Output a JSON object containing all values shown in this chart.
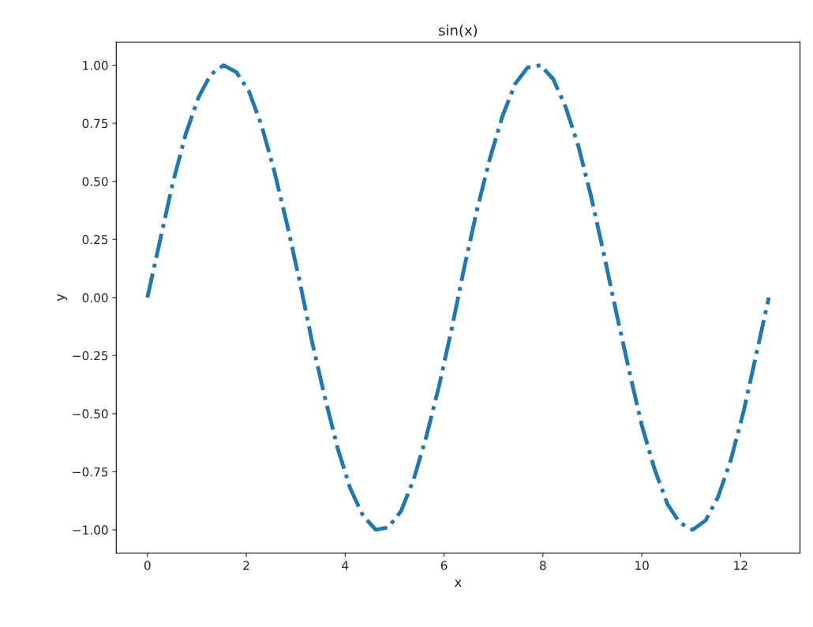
{
  "chart_data": {
    "type": "line",
    "title": "sin(x)",
    "xlabel": "x",
    "ylabel": "y",
    "x": [
      0.0,
      0.26,
      0.51,
      0.77,
      1.03,
      1.28,
      1.54,
      1.8,
      2.05,
      2.31,
      2.56,
      2.82,
      3.08,
      3.33,
      3.59,
      3.85,
      4.1,
      4.36,
      4.62,
      4.87,
      5.13,
      5.39,
      5.64,
      5.9,
      6.16,
      6.41,
      6.67,
      6.93,
      7.18,
      7.44,
      7.69,
      7.95,
      8.21,
      8.46,
      8.72,
      8.98,
      9.23,
      9.49,
      9.75,
      10.0,
      10.26,
      10.52,
      10.77,
      11.03,
      11.29,
      11.54,
      11.8,
      12.06,
      12.31,
      12.57
    ],
    "series": [
      {
        "color": "#1f77b4",
        "values": [
          0.0,
          0.25,
          0.49,
          0.7,
          0.86,
          0.96,
          1.0,
          0.97,
          0.89,
          0.74,
          0.55,
          0.32,
          0.07,
          -0.19,
          -0.43,
          -0.65,
          -0.82,
          -0.94,
          -1.0,
          -0.99,
          -0.92,
          -0.78,
          -0.6,
          -0.38,
          -0.13,
          0.13,
          0.38,
          0.6,
          0.78,
          0.92,
          0.99,
          1.0,
          0.94,
          0.82,
          0.65,
          0.43,
          0.19,
          -0.07,
          -0.32,
          -0.55,
          -0.74,
          -0.89,
          -0.97,
          -1.0,
          -0.96,
          -0.86,
          -0.7,
          -0.49,
          -0.25,
          0.0
        ]
      }
    ],
    "line_style": "dashdot",
    "marker": "none",
    "grid": false,
    "legend": false,
    "xlim": [
      -0.63,
      13.2
    ],
    "ylim": [
      -1.1,
      1.1
    ],
    "xticks": [
      0,
      2,
      4,
      6,
      8,
      10,
      12
    ],
    "yticks": [
      {
        "value": -1.0,
        "label": "−1.00"
      },
      {
        "value": -0.75,
        "label": "−0.75"
      },
      {
        "value": -0.5,
        "label": "−0.50"
      },
      {
        "value": -0.25,
        "label": "−0.25"
      },
      {
        "value": 0.0,
        "label": "0.00"
      },
      {
        "value": 0.25,
        "label": "0.25"
      },
      {
        "value": 0.5,
        "label": "0.50"
      },
      {
        "value": 0.75,
        "label": "0.75"
      },
      {
        "value": 1.0,
        "label": "1.00"
      }
    ]
  }
}
